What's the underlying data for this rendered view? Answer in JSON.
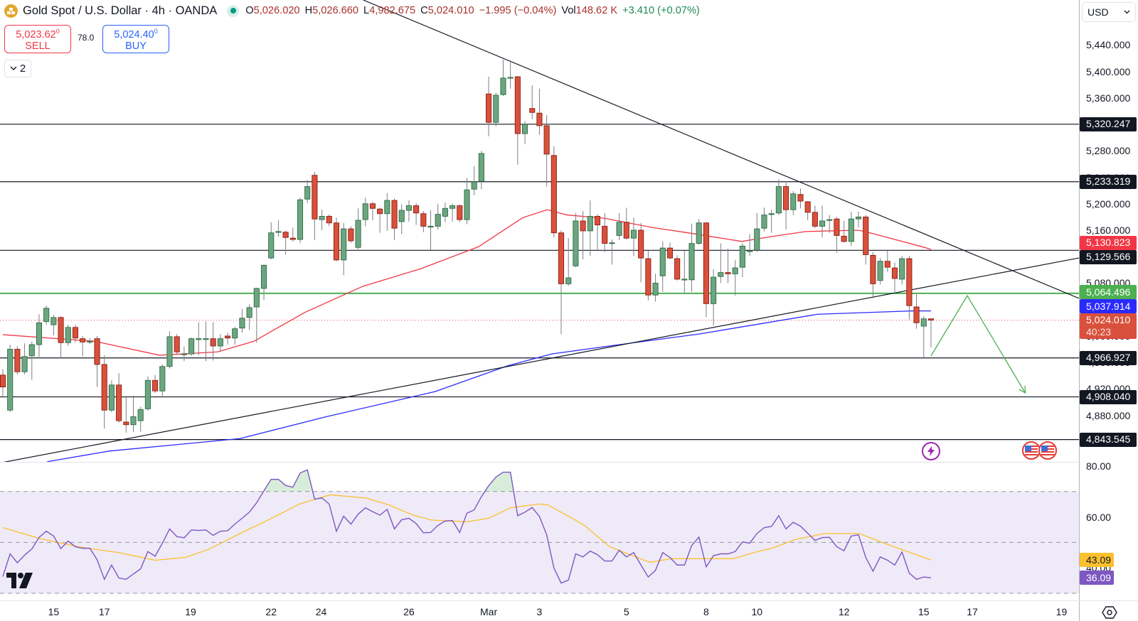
{
  "header": {
    "title": "Gold Spot / U.S. Dollar · 4h · OANDA",
    "ohlc": {
      "open_label": "O",
      "open": "5,026.020",
      "high_label": "H",
      "high": "5,026.660",
      "low_label": "L",
      "low": "4,982.675",
      "close_label": "C",
      "close": "5,024.010"
    },
    "change": "−1.995 (−0.04%)",
    "volume_label": "Vol",
    "volume": "148.62 K",
    "volume_change": "+3.410 (+0.07%)"
  },
  "trade": {
    "sell_price": "5,023.62",
    "sell_sup": "0",
    "sell_label": "SELL",
    "spread": "78.0",
    "buy_price": "5,024.40",
    "buy_sup": "0",
    "buy_label": "BUY"
  },
  "indicators_toggle": {
    "count": "2"
  },
  "currency": "USD",
  "colors": {
    "up": "#6ba681",
    "up_border": "#2f6b43",
    "down": "#d9503c",
    "down_border": "#8c1f12",
    "sma_short": "#f23645",
    "sma_long": "#2a2aff",
    "level": "#131722",
    "support_green": "#4caf50",
    "rsi": "#7e57c2",
    "rsi_ma": "#fbc02d",
    "rsi_band": "#efeaf8"
  },
  "chart_data": {
    "type": "candlestick",
    "symbol": "Gold Spot / U.S. Dollar",
    "interval": "4h",
    "ohlc_columns": [
      "open",
      "high",
      "low",
      "close"
    ],
    "candles": [
      [
        4941,
        4950,
        4909,
        4923
      ],
      [
        4888,
        4987,
        4885,
        4980
      ],
      [
        4980,
        4985,
        4942,
        4946
      ],
      [
        4946,
        4989,
        4942,
        4969
      ],
      [
        4970,
        4992,
        4934,
        4987
      ],
      [
        4987,
        5033,
        4966,
        5020
      ],
      [
        5022,
        5046,
        5017,
        5042
      ],
      [
        5017,
        5032,
        5001,
        5028
      ],
      [
        5028,
        5030,
        4966,
        4990
      ],
      [
        4990,
        5017,
        4985,
        5013
      ],
      [
        5013,
        5017,
        4990,
        4997
      ],
      [
        4996,
        5000,
        4969,
        4991
      ],
      [
        4992,
        4997,
        4988,
        4992
      ],
      [
        4996,
        5000,
        4923,
        4957
      ],
      [
        4957,
        4971,
        4860,
        4888
      ],
      [
        4888,
        4933,
        4885,
        4926
      ],
      [
        4926,
        4944,
        4869,
        4872
      ],
      [
        4870,
        4907,
        4854,
        4866
      ],
      [
        4866,
        4910,
        4855,
        4878
      ],
      [
        4872,
        4893,
        4855,
        4889
      ],
      [
        4890,
        4939,
        4887,
        4933
      ],
      [
        4933,
        4941,
        4914,
        4917
      ],
      [
        4917,
        4957,
        4907,
        4954
      ],
      [
        4954,
        5007,
        4951,
        4999
      ],
      [
        4999,
        5003,
        4973,
        4976
      ],
      [
        4973,
        4984,
        4962,
        4973
      ],
      [
        4973,
        4998,
        4970,
        4996
      ],
      [
        4996,
        5021,
        4971,
        4996
      ],
      [
        4996,
        5022,
        4962,
        4996
      ],
      [
        4996,
        5021,
        4963,
        4985
      ],
      [
        4985,
        5003,
        4976,
        4996
      ],
      [
        5000,
        5005,
        4987,
        4997
      ],
      [
        4997,
        5014,
        4987,
        5011
      ],
      [
        5012,
        5041,
        5005,
        5027
      ],
      [
        5028,
        5048,
        5009,
        5043
      ],
      [
        5044,
        5073,
        4990,
        5072
      ],
      [
        5072,
        5108,
        5054,
        5107
      ],
      [
        5118,
        5172,
        5116,
        5156
      ],
      [
        5158,
        5175,
        5150,
        5158
      ],
      [
        5157,
        5159,
        5123,
        5149
      ],
      [
        5148,
        5164,
        5143,
        5146
      ],
      [
        5146,
        5209,
        5141,
        5206
      ],
      [
        5207,
        5236,
        5201,
        5226
      ],
      [
        5243,
        5248,
        5145,
        5177
      ],
      [
        5176,
        5191,
        5160,
        5181
      ],
      [
        5181,
        5184,
        5166,
        5171
      ],
      [
        5171,
        5179,
        5113,
        5115
      ],
      [
        5115,
        5171,
        5092,
        5162
      ],
      [
        5162,
        5166,
        5141,
        5144
      ],
      [
        5134,
        5193,
        5129,
        5175
      ],
      [
        5176,
        5209,
        5166,
        5200
      ],
      [
        5200,
        5203,
        5175,
        5193
      ],
      [
        5192,
        5194,
        5156,
        5185
      ],
      [
        5185,
        5216,
        5159,
        5205
      ],
      [
        5205,
        5208,
        5145,
        5163
      ],
      [
        5173,
        5199,
        5154,
        5190
      ],
      [
        5190,
        5205,
        5173,
        5197
      ],
      [
        5197,
        5201,
        5168,
        5186
      ],
      [
        5185,
        5189,
        5157,
        5166
      ],
      [
        5166,
        5190,
        5130,
        5166
      ],
      [
        5166,
        5200,
        5161,
        5184
      ],
      [
        5181,
        5202,
        5172,
        5193
      ],
      [
        5193,
        5200,
        5173,
        5197
      ],
      [
        5197,
        5199,
        5172,
        5176
      ],
      [
        5176,
        5239,
        5169,
        5221
      ],
      [
        5222,
        5257,
        5213,
        5233
      ],
      [
        5234,
        5280,
        5222,
        5276
      ],
      [
        5366,
        5392,
        5302,
        5323
      ],
      [
        5323,
        5368,
        5317,
        5364
      ],
      [
        5365,
        5418,
        5363,
        5390
      ],
      [
        5391,
        5417,
        5374,
        5391
      ],
      [
        5392,
        5393,
        5259,
        5306
      ],
      [
        5306,
        5325,
        5290,
        5320
      ],
      [
        5344,
        5379,
        5328,
        5338
      ],
      [
        5337,
        5374,
        5304,
        5318
      ],
      [
        5318,
        5334,
        5226,
        5275
      ],
      [
        5273,
        5287,
        5149,
        5156
      ],
      [
        5156,
        5160,
        5003,
        5079
      ],
      [
        5079,
        5148,
        5076,
        5088
      ],
      [
        5106,
        5186,
        5104,
        5174
      ],
      [
        5174,
        5189,
        5116,
        5159
      ],
      [
        5159,
        5205,
        5121,
        5181
      ],
      [
        5181,
        5184,
        5130,
        5168
      ],
      [
        5166,
        5186,
        5127,
        5140
      ],
      [
        5141,
        5146,
        5108,
        5141
      ],
      [
        5152,
        5186,
        5145,
        5172
      ],
      [
        5172,
        5194,
        5146,
        5148
      ],
      [
        5148,
        5179,
        5121,
        5160
      ],
      [
        5160,
        5171,
        5081,
        5118
      ],
      [
        5117,
        5129,
        5054,
        5062
      ],
      [
        5062,
        5094,
        5052,
        5080
      ],
      [
        5091,
        5143,
        5067,
        5133
      ],
      [
        5133,
        5141,
        5116,
        5118
      ],
      [
        5117,
        5122,
        5084,
        5086
      ],
      [
        5086,
        5129,
        5064,
        5086
      ],
      [
        5085,
        5170,
        5067,
        5140
      ],
      [
        5140,
        5177,
        5138,
        5171
      ],
      [
        5171,
        5172,
        5029,
        5049
      ],
      [
        5049,
        5101,
        5016,
        5089
      ],
      [
        5090,
        5140,
        5080,
        5096
      ],
      [
        5096,
        5132,
        5080,
        5094
      ],
      [
        5094,
        5115,
        5061,
        5103
      ],
      [
        5104,
        5140,
        5089,
        5136
      ],
      [
        5129,
        5154,
        5121,
        5129
      ],
      [
        5130,
        5186,
        5127,
        5162
      ],
      [
        5163,
        5194,
        5158,
        5183
      ],
      [
        5185,
        5191,
        5156,
        5185
      ],
      [
        5186,
        5237,
        5183,
        5226
      ],
      [
        5226,
        5234,
        5161,
        5191
      ],
      [
        5191,
        5219,
        5183,
        5215
      ],
      [
        5214,
        5223,
        5193,
        5204
      ],
      [
        5203,
        5204,
        5175,
        5187
      ],
      [
        5187,
        5197,
        5163,
        5166
      ],
      [
        5166,
        5197,
        5149,
        5174
      ],
      [
        5176,
        5183,
        5156,
        5176
      ],
      [
        5177,
        5180,
        5126,
        5152
      ],
      [
        5151,
        5174,
        5141,
        5143
      ],
      [
        5143,
        5188,
        5136,
        5177
      ],
      [
        5177,
        5188,
        5164,
        5180
      ],
      [
        5180,
        5183,
        5108,
        5123
      ],
      [
        5122,
        5127,
        5057,
        5079
      ],
      [
        5084,
        5118,
        5078,
        5113
      ],
      [
        5113,
        5129,
        5097,
        5104
      ],
      [
        5103,
        5111,
        5064,
        5087
      ],
      [
        5086,
        5121,
        5078,
        5117
      ],
      [
        5117,
        5121,
        5025,
        5046
      ],
      [
        5044,
        5063,
        5011,
        5020
      ],
      [
        5015,
        5030,
        4967,
        5026
      ],
      [
        5026.02,
        5026.66,
        4982.675,
        5024.01
      ]
    ],
    "moving_averages": [
      {
        "color": "#f23645",
        "last": 5130.823,
        "points": [
          [
            0,
            5002
          ],
          [
            12.7,
            4992
          ],
          [
            21.6,
            4971
          ],
          [
            29.6,
            4976
          ],
          [
            34.6,
            4992
          ],
          [
            41.7,
            5036
          ],
          [
            49.6,
            5075
          ],
          [
            57.7,
            5102
          ],
          [
            65.6,
            5135
          ],
          [
            71.7,
            5179
          ],
          [
            75.1,
            5191
          ],
          [
            77.8,
            5183
          ],
          [
            83,
            5178
          ],
          [
            89.6,
            5164
          ],
          [
            94.5,
            5156
          ],
          [
            101.9,
            5143
          ],
          [
            105.8,
            5150
          ],
          [
            110.7,
            5158
          ],
          [
            118,
            5160
          ],
          [
            119.6,
            5156
          ],
          [
            127.1,
            5134
          ],
          [
            128,
            5130.823
          ]
        ]
      },
      {
        "color": "#2a2aff",
        "last": 5037.914,
        "points": [
          [
            6.1,
            4810
          ],
          [
            14.6,
            4826
          ],
          [
            32.7,
            4845
          ],
          [
            44.6,
            4878
          ],
          [
            59.6,
            4916
          ],
          [
            69.6,
            4955
          ],
          [
            75.7,
            4973
          ],
          [
            83,
            4984
          ],
          [
            96,
            5003
          ],
          [
            112.4,
            5033
          ],
          [
            125.5,
            5038
          ],
          [
            128,
            5037.914
          ]
        ]
      }
    ],
    "horizontal_levels": [
      {
        "price": 5320.247,
        "label": "5,320.247",
        "color": "#131722"
      },
      {
        "price": 5233.319,
        "label": "5,233.319",
        "color": "#131722"
      },
      {
        "price": 5129.566,
        "label": "5,129.566",
        "color": "#131722"
      },
      {
        "price": 5064.496,
        "label": "5,064.496",
        "color": "#4caf50"
      },
      {
        "price": 4966.927,
        "label": "4,966.927",
        "color": "#131722"
      },
      {
        "price": 4908.04,
        "label": "4,908.040",
        "color": "#131722"
      },
      {
        "price": 4843.545,
        "label": "4,843.545",
        "color": "#131722"
      }
    ],
    "current_price": {
      "price": 5024.01,
      "label": "5,024.010",
      "countdown": "40:23",
      "color": "#d9503c"
    },
    "ma_labels": [
      {
        "price": 5130.823,
        "label": "5,130.823",
        "color": "#f23645"
      },
      {
        "price": 5037.914,
        "label": "5,037.914",
        "color": "#2a2aff"
      }
    ],
    "trendlines": [
      {
        "from": [
          49.7,
          5508
        ],
        "to": [
          148.4,
          5057
        ]
      },
      {
        "from": [
          0,
          4809
        ],
        "to": [
          148.4,
          5118
        ]
      }
    ],
    "projection": [
      [
        128,
        4970
      ],
      [
        133,
        5061
      ],
      [
        141,
        4914
      ]
    ],
    "y_ticks": [
      "5,440.000",
      "5,400.000",
      "5,360.000",
      "5,320.000",
      "5,280.000",
      "5,240.000",
      "5,200.000",
      "5,160.000",
      "5,120.000",
      "5,080.000",
      "5,040.000",
      "5,000.000",
      "4,960.000",
      "4,920.000",
      "4,880.000"
    ],
    "ylim": [
      4808,
      5508
    ],
    "x_ticks": [
      {
        "label": "15",
        "bar": 7
      },
      {
        "label": "17",
        "bar": 14
      },
      {
        "label": "19",
        "bar": 25.9
      },
      {
        "label": "22",
        "bar": 37
      },
      {
        "label": "24",
        "bar": 43.9
      },
      {
        "label": "26",
        "bar": 56
      },
      {
        "label": "Mar",
        "bar": 67
      },
      {
        "label": "3",
        "bar": 74
      },
      {
        "label": "5",
        "bar": 86
      },
      {
        "label": "8",
        "bar": 97
      },
      {
        "label": "10",
        "bar": 104
      },
      {
        "label": "12",
        "bar": 116
      },
      {
        "label": "15",
        "bar": 127
      },
      {
        "label": "17",
        "bar": 133.7
      },
      {
        "label": "19",
        "bar": 146
      }
    ],
    "rsi": {
      "values": [
        36.6,
        45.5,
        42,
        45,
        47.4,
        52,
        54.4,
        52.5,
        47.6,
        50.5,
        48.3,
        47.7,
        47.7,
        43.2,
        35.5,
        41.1,
        36,
        35.5,
        37.6,
        39.6,
        46.4,
        44.6,
        49.7,
        55.3,
        52.3,
        51.8,
        54.9,
        54.7,
        54.9,
        52.8,
        54.4,
        54.6,
        57.2,
        59.5,
        61.9,
        65.6,
        70.3,
        74.8,
        74.8,
        72.4,
        71.7,
        77.3,
        78.5,
        67,
        67.5,
        65.1,
        54.4,
        60.3,
        57.2,
        61.1,
        63.6,
        62.1,
        60.7,
        63,
        55.3,
        58.9,
        59.5,
        57.4,
        53.8,
        53.9,
        56.7,
        58.4,
        58.6,
        53.9,
        61.5,
        62.8,
        68,
        72.3,
        75.7,
        77.6,
        77.6,
        60.5,
        61.9,
        63.7,
        60.2,
        53,
        39.9,
        34,
        35.2,
        45.5,
        44.3,
        46.6,
        45.2,
        42.7,
        42.7,
        46.9,
        44.3,
        46,
        41.1,
        36.4,
        39,
        46,
        44.1,
        41.1,
        41.1,
        48.8,
        52.1,
        40.4,
        44.8,
        45.5,
        45.5,
        46.4,
        50.2,
        49.7,
        53.5,
        55.8,
        56.3,
        60.5,
        55.3,
        57.9,
        56.4,
        53.6,
        50.8,
        51.9,
        52,
        48.3,
        46.7,
        52.5,
        53,
        44.1,
        38.7,
        44.3,
        43,
        41.1,
        46.2,
        37.9,
        35.5,
        36.4,
        36.09
      ],
      "ma_points": [
        [
          0,
          55.8
        ],
        [
          5,
          51.6
        ],
        [
          10.4,
          48.3
        ],
        [
          13.2,
          47.1
        ],
        [
          16,
          46
        ],
        [
          21,
          43
        ],
        [
          25.2,
          44.1
        ],
        [
          28.5,
          47.4
        ],
        [
          32.7,
          53.5
        ],
        [
          36.8,
          59.1
        ],
        [
          40.9,
          65.1
        ],
        [
          45.1,
          68.7
        ],
        [
          50,
          67.5
        ],
        [
          53.3,
          64.7
        ],
        [
          56.6,
          60.7
        ],
        [
          59.1,
          58.8
        ],
        [
          64,
          58.1
        ],
        [
          67,
          59.5
        ],
        [
          70,
          63.6
        ],
        [
          73.9,
          65.1
        ],
        [
          75.1,
          64.8
        ],
        [
          78.1,
          60.2
        ],
        [
          80.2,
          56.7
        ],
        [
          83.7,
          48.3
        ],
        [
          86.2,
          45.5
        ],
        [
          89.2,
          42.2
        ],
        [
          92.2,
          43.6
        ],
        [
          96,
          43.6
        ],
        [
          100.7,
          43.6
        ],
        [
          104.1,
          46.4
        ],
        [
          106.2,
          47.8
        ],
        [
          109.2,
          51.1
        ],
        [
          113.4,
          53.5
        ],
        [
          118.1,
          53.5
        ],
        [
          121.9,
          49.3
        ],
        [
          128,
          43.09
        ]
      ],
      "levels": [
        70,
        50,
        30
      ],
      "y_ticks": [
        "80.00",
        "60.00",
        "40.00"
      ],
      "last_label": "36.09",
      "ma_last_label": "43.09"
    }
  }
}
